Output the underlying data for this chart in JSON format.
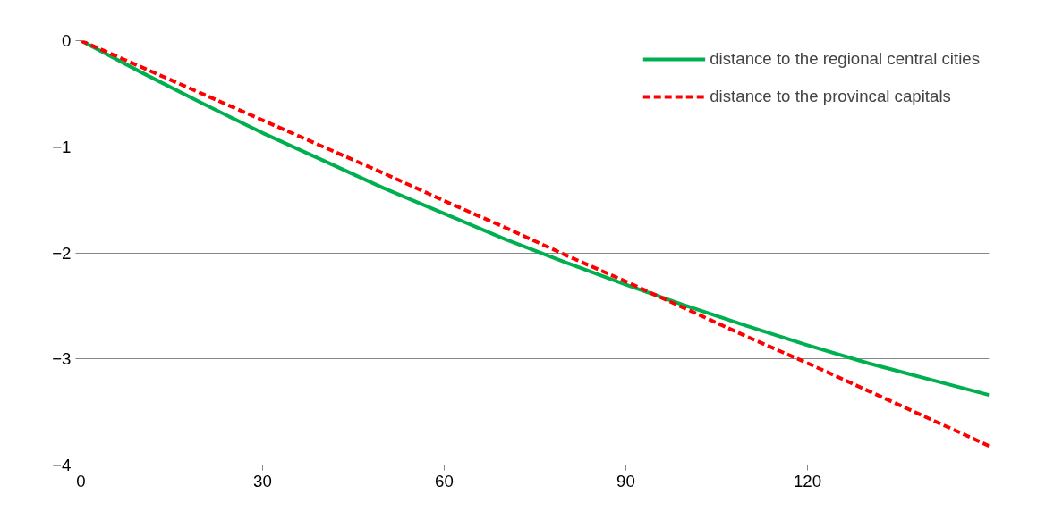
{
  "chart_data": {
    "type": "line",
    "x": [
      0,
      10,
      20,
      30,
      40,
      50,
      60,
      70,
      80,
      90,
      100,
      110,
      120,
      130,
      140,
      150
    ],
    "series": [
      {
        "name": "distance to the regional central cities",
        "color": "#00b050",
        "line_style": "solid",
        "values": [
          0,
          -0.3,
          -0.59,
          -0.87,
          -1.13,
          -1.39,
          -1.63,
          -1.87,
          -2.09,
          -2.3,
          -2.5,
          -2.69,
          -2.87,
          -3.04,
          -3.19,
          -3.34
        ]
      },
      {
        "name": "distance to the provincal capitals",
        "color": "#ff0000",
        "line_style": "dashed",
        "values": [
          0,
          -0.25,
          -0.5,
          -0.75,
          -1.0,
          -1.25,
          -1.51,
          -1.76,
          -2.02,
          -2.27,
          -2.53,
          -2.79,
          -3.04,
          -3.3,
          -3.56,
          -3.82
        ]
      }
    ],
    "xlim": [
      0,
      150
    ],
    "xticks": [
      0,
      30,
      60,
      90,
      120
    ],
    "ylim": [
      -4,
      0
    ],
    "yticks": [
      -4,
      -3,
      -2,
      -1,
      0
    ],
    "grid": "y",
    "legend": "top right",
    "marker": "none"
  }
}
